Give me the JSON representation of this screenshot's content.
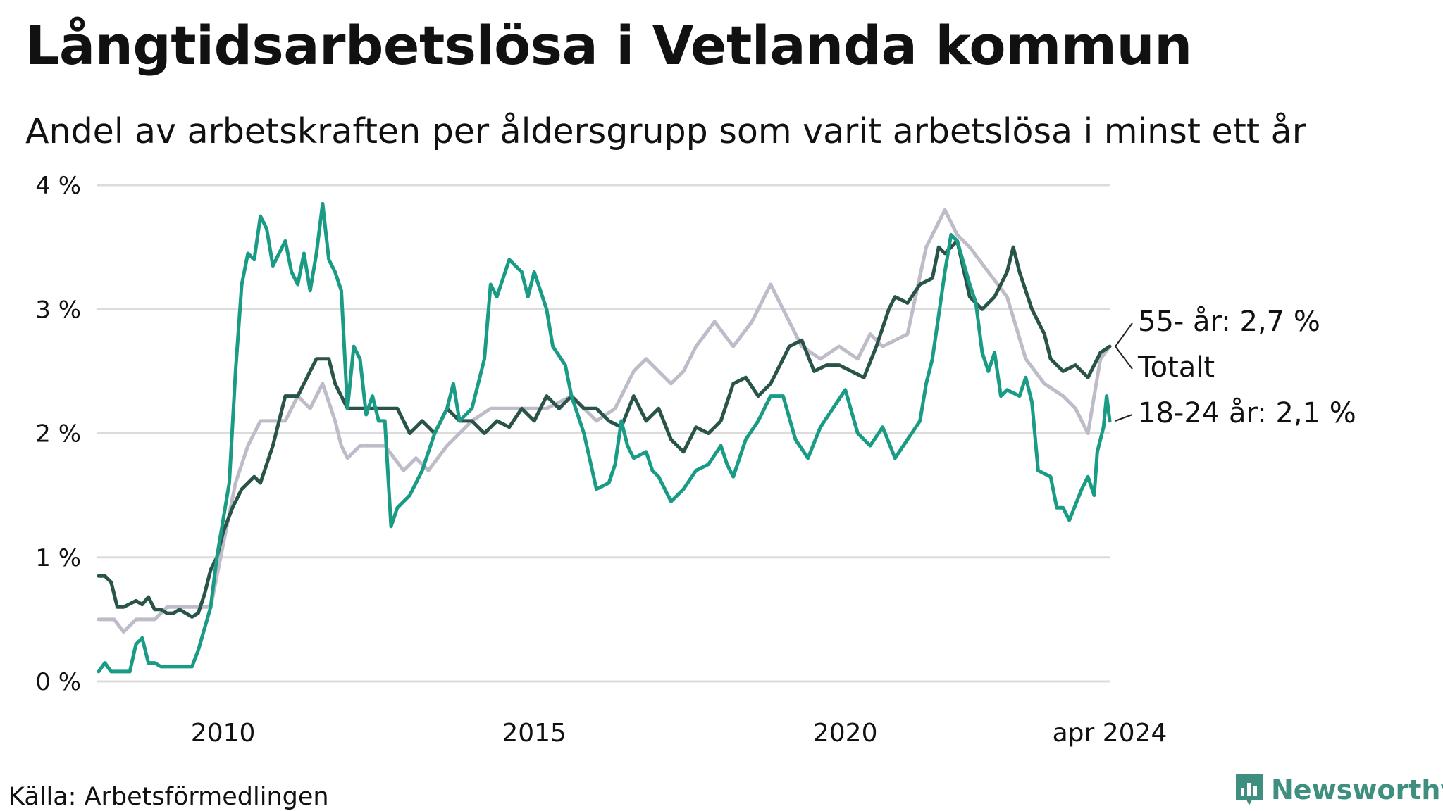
{
  "title": "Långtidsarbetslösa i Vetlanda kommun",
  "subtitle": "Andel av arbetskraften per åldersgrupp som varit arbetslösa i minst ett år",
  "source": "Källa: Arbetsförmedlingen",
  "brand": {
    "name": "Newsworthy",
    "icon": "newsworthy-logo-icon",
    "color": "#3e8f7f"
  },
  "chart_data": {
    "type": "line",
    "x_range": [
      2008.0,
      2024.25
    ],
    "x_ticks": [
      {
        "value": 2010,
        "label": "2010"
      },
      {
        "value": 2015,
        "label": "2015"
      },
      {
        "value": 2020,
        "label": "2020"
      },
      {
        "value": 2024.25,
        "label": "apr 2024"
      }
    ],
    "y_range": [
      0,
      4
    ],
    "y_ticks": [
      {
        "value": 0,
        "label": "0 %"
      },
      {
        "value": 1,
        "label": "1 %"
      },
      {
        "value": 2,
        "label": "2 %"
      },
      {
        "value": 3,
        "label": "3 %"
      },
      {
        "value": 4,
        "label": "4 %"
      }
    ],
    "grid": true,
    "series": [
      {
        "name": "55- år",
        "end_label": "55- år: 2,7 %",
        "color": "#bdbcc8",
        "points": [
          [
            2008.0,
            0.5
          ],
          [
            2008.25,
            0.5
          ],
          [
            2008.4,
            0.4
          ],
          [
            2008.6,
            0.5
          ],
          [
            2008.9,
            0.5
          ],
          [
            2009.1,
            0.6
          ],
          [
            2009.5,
            0.6
          ],
          [
            2009.8,
            0.6
          ],
          [
            2010.0,
            1.1
          ],
          [
            2010.2,
            1.6
          ],
          [
            2010.4,
            1.9
          ],
          [
            2010.6,
            2.1
          ],
          [
            2010.8,
            2.1
          ],
          [
            2011.0,
            2.1
          ],
          [
            2011.2,
            2.3
          ],
          [
            2011.4,
            2.2
          ],
          [
            2011.6,
            2.4
          ],
          [
            2011.8,
            2.1
          ],
          [
            2011.9,
            1.9
          ],
          [
            2012.0,
            1.8
          ],
          [
            2012.2,
            1.9
          ],
          [
            2012.6,
            1.9
          ],
          [
            2012.9,
            1.7
          ],
          [
            2013.1,
            1.8
          ],
          [
            2013.3,
            1.7
          ],
          [
            2013.6,
            1.9
          ],
          [
            2013.8,
            2.0
          ],
          [
            2014.0,
            2.1
          ],
          [
            2014.3,
            2.2
          ],
          [
            2014.8,
            2.2
          ],
          [
            2015.2,
            2.2
          ],
          [
            2015.6,
            2.3
          ],
          [
            2016.0,
            2.1
          ],
          [
            2016.3,
            2.2
          ],
          [
            2016.6,
            2.5
          ],
          [
            2016.8,
            2.6
          ],
          [
            2017.2,
            2.4
          ],
          [
            2017.4,
            2.5
          ],
          [
            2017.6,
            2.7
          ],
          [
            2017.9,
            2.9
          ],
          [
            2018.2,
            2.7
          ],
          [
            2018.5,
            2.9
          ],
          [
            2018.8,
            3.2
          ],
          [
            2019.0,
            3.0
          ],
          [
            2019.3,
            2.7
          ],
          [
            2019.6,
            2.6
          ],
          [
            2019.9,
            2.7
          ],
          [
            2020.2,
            2.6
          ],
          [
            2020.4,
            2.8
          ],
          [
            2020.6,
            2.7
          ],
          [
            2021.0,
            2.8
          ],
          [
            2021.3,
            3.5
          ],
          [
            2021.6,
            3.8
          ],
          [
            2021.8,
            3.6
          ],
          [
            2022.0,
            3.5
          ],
          [
            2022.3,
            3.3
          ],
          [
            2022.6,
            3.1
          ],
          [
            2022.9,
            2.6
          ],
          [
            2023.2,
            2.4
          ],
          [
            2023.5,
            2.3
          ],
          [
            2023.7,
            2.2
          ],
          [
            2023.9,
            2.0
          ],
          [
            2024.0,
            2.3
          ],
          [
            2024.1,
            2.6
          ],
          [
            2024.25,
            2.7
          ]
        ]
      },
      {
        "name": "Totalt",
        "end_label": "Totalt",
        "color": "#2a5449",
        "points": [
          [
            2008.0,
            0.85
          ],
          [
            2008.1,
            0.85
          ],
          [
            2008.2,
            0.8
          ],
          [
            2008.3,
            0.6
          ],
          [
            2008.4,
            0.6
          ],
          [
            2008.6,
            0.65
          ],
          [
            2008.7,
            0.62
          ],
          [
            2008.8,
            0.68
          ],
          [
            2008.9,
            0.58
          ],
          [
            2009.0,
            0.58
          ],
          [
            2009.1,
            0.55
          ],
          [
            2009.2,
            0.55
          ],
          [
            2009.3,
            0.58
          ],
          [
            2009.5,
            0.52
          ],
          [
            2009.6,
            0.55
          ],
          [
            2009.7,
            0.7
          ],
          [
            2009.8,
            0.9
          ],
          [
            2009.9,
            1.0
          ],
          [
            2010.0,
            1.2
          ],
          [
            2010.15,
            1.4
          ],
          [
            2010.3,
            1.55
          ],
          [
            2010.5,
            1.65
          ],
          [
            2010.6,
            1.6
          ],
          [
            2010.8,
            1.9
          ],
          [
            2011.0,
            2.3
          ],
          [
            2011.2,
            2.3
          ],
          [
            2011.4,
            2.5
          ],
          [
            2011.5,
            2.6
          ],
          [
            2011.7,
            2.6
          ],
          [
            2011.8,
            2.4
          ],
          [
            2012.0,
            2.2
          ],
          [
            2012.2,
            2.2
          ],
          [
            2012.4,
            2.2
          ],
          [
            2012.6,
            2.2
          ],
          [
            2012.8,
            2.2
          ],
          [
            2013.0,
            2.0
          ],
          [
            2013.2,
            2.1
          ],
          [
            2013.4,
            2.0
          ],
          [
            2013.6,
            2.2
          ],
          [
            2013.8,
            2.1
          ],
          [
            2014.0,
            2.1
          ],
          [
            2014.2,
            2.0
          ],
          [
            2014.4,
            2.1
          ],
          [
            2014.6,
            2.05
          ],
          [
            2014.8,
            2.2
          ],
          [
            2015.0,
            2.1
          ],
          [
            2015.2,
            2.3
          ],
          [
            2015.4,
            2.2
          ],
          [
            2015.6,
            2.3
          ],
          [
            2015.8,
            2.2
          ],
          [
            2016.0,
            2.2
          ],
          [
            2016.2,
            2.1
          ],
          [
            2016.4,
            2.05
          ],
          [
            2016.6,
            2.3
          ],
          [
            2016.8,
            2.1
          ],
          [
            2017.0,
            2.2
          ],
          [
            2017.2,
            1.95
          ],
          [
            2017.4,
            1.85
          ],
          [
            2017.6,
            2.05
          ],
          [
            2017.8,
            2.0
          ],
          [
            2018.0,
            2.1
          ],
          [
            2018.2,
            2.4
          ],
          [
            2018.4,
            2.45
          ],
          [
            2018.6,
            2.3
          ],
          [
            2018.8,
            2.4
          ],
          [
            2019.0,
            2.6
          ],
          [
            2019.1,
            2.7
          ],
          [
            2019.3,
            2.75
          ],
          [
            2019.5,
            2.5
          ],
          [
            2019.7,
            2.55
          ],
          [
            2019.9,
            2.55
          ],
          [
            2020.1,
            2.5
          ],
          [
            2020.3,
            2.45
          ],
          [
            2020.5,
            2.7
          ],
          [
            2020.7,
            3.0
          ],
          [
            2020.8,
            3.1
          ],
          [
            2021.0,
            3.05
          ],
          [
            2021.2,
            3.2
          ],
          [
            2021.4,
            3.25
          ],
          [
            2021.5,
            3.5
          ],
          [
            2021.6,
            3.45
          ],
          [
            2021.8,
            3.55
          ],
          [
            2022.0,
            3.1
          ],
          [
            2022.2,
            3.0
          ],
          [
            2022.4,
            3.1
          ],
          [
            2022.6,
            3.3
          ],
          [
            2022.7,
            3.5
          ],
          [
            2022.8,
            3.3
          ],
          [
            2023.0,
            3.0
          ],
          [
            2023.2,
            2.8
          ],
          [
            2023.3,
            2.6
          ],
          [
            2023.5,
            2.5
          ],
          [
            2023.7,
            2.55
          ],
          [
            2023.9,
            2.45
          ],
          [
            2024.0,
            2.55
          ],
          [
            2024.1,
            2.65
          ],
          [
            2024.25,
            2.7
          ]
        ]
      },
      {
        "name": "18-24 år",
        "end_label": "18-24 år: 2,1 %",
        "color": "#1a9b85",
        "points": [
          [
            2008.0,
            0.08
          ],
          [
            2008.1,
            0.15
          ],
          [
            2008.2,
            0.08
          ],
          [
            2008.4,
            0.08
          ],
          [
            2008.5,
            0.08
          ],
          [
            2008.6,
            0.3
          ],
          [
            2008.7,
            0.35
          ],
          [
            2008.8,
            0.15
          ],
          [
            2008.9,
            0.15
          ],
          [
            2009.0,
            0.12
          ],
          [
            2009.3,
            0.12
          ],
          [
            2009.5,
            0.12
          ],
          [
            2009.6,
            0.25
          ],
          [
            2009.8,
            0.6
          ],
          [
            2009.9,
            1.0
          ],
          [
            2010.0,
            1.3
          ],
          [
            2010.1,
            1.6
          ],
          [
            2010.2,
            2.5
          ],
          [
            2010.3,
            3.2
          ],
          [
            2010.4,
            3.45
          ],
          [
            2010.5,
            3.4
          ],
          [
            2010.6,
            3.75
          ],
          [
            2010.7,
            3.65
          ],
          [
            2010.8,
            3.35
          ],
          [
            2010.9,
            3.45
          ],
          [
            2011.0,
            3.55
          ],
          [
            2011.1,
            3.3
          ],
          [
            2011.2,
            3.2
          ],
          [
            2011.3,
            3.45
          ],
          [
            2011.4,
            3.15
          ],
          [
            2011.5,
            3.45
          ],
          [
            2011.6,
            3.85
          ],
          [
            2011.7,
            3.4
          ],
          [
            2011.8,
            3.3
          ],
          [
            2011.9,
            3.15
          ],
          [
            2012.0,
            2.2
          ],
          [
            2012.1,
            2.7
          ],
          [
            2012.2,
            2.6
          ],
          [
            2012.3,
            2.15
          ],
          [
            2012.4,
            2.3
          ],
          [
            2012.5,
            2.1
          ],
          [
            2012.6,
            2.1
          ],
          [
            2012.7,
            1.25
          ],
          [
            2012.8,
            1.4
          ],
          [
            2013.0,
            1.5
          ],
          [
            2013.2,
            1.7
          ],
          [
            2013.4,
            2.0
          ],
          [
            2013.6,
            2.2
          ],
          [
            2013.7,
            2.4
          ],
          [
            2013.8,
            2.1
          ],
          [
            2014.0,
            2.2
          ],
          [
            2014.2,
            2.6
          ],
          [
            2014.3,
            3.2
          ],
          [
            2014.4,
            3.1
          ],
          [
            2014.6,
            3.4
          ],
          [
            2014.8,
            3.3
          ],
          [
            2014.9,
            3.1
          ],
          [
            2015.0,
            3.3
          ],
          [
            2015.2,
            3.0
          ],
          [
            2015.3,
            2.7
          ],
          [
            2015.5,
            2.55
          ],
          [
            2015.6,
            2.3
          ],
          [
            2015.8,
            2.0
          ],
          [
            2016.0,
            1.55
          ],
          [
            2016.2,
            1.6
          ],
          [
            2016.3,
            1.75
          ],
          [
            2016.4,
            2.1
          ],
          [
            2016.5,
            1.9
          ],
          [
            2016.6,
            1.8
          ],
          [
            2016.8,
            1.85
          ],
          [
            2016.9,
            1.7
          ],
          [
            2017.0,
            1.65
          ],
          [
            2017.2,
            1.45
          ],
          [
            2017.4,
            1.55
          ],
          [
            2017.6,
            1.7
          ],
          [
            2017.8,
            1.75
          ],
          [
            2018.0,
            1.9
          ],
          [
            2018.1,
            1.75
          ],
          [
            2018.2,
            1.65
          ],
          [
            2018.4,
            1.95
          ],
          [
            2018.6,
            2.1
          ],
          [
            2018.8,
            2.3
          ],
          [
            2019.0,
            2.3
          ],
          [
            2019.2,
            1.95
          ],
          [
            2019.4,
            1.8
          ],
          [
            2019.6,
            2.05
          ],
          [
            2019.8,
            2.2
          ],
          [
            2020.0,
            2.35
          ],
          [
            2020.2,
            2.0
          ],
          [
            2020.4,
            1.9
          ],
          [
            2020.6,
            2.05
          ],
          [
            2020.8,
            1.8
          ],
          [
            2021.0,
            1.95
          ],
          [
            2021.2,
            2.1
          ],
          [
            2021.3,
            2.4
          ],
          [
            2021.4,
            2.6
          ],
          [
            2021.5,
            2.95
          ],
          [
            2021.6,
            3.3
          ],
          [
            2021.7,
            3.6
          ],
          [
            2021.8,
            3.55
          ],
          [
            2022.0,
            3.2
          ],
          [
            2022.1,
            3.05
          ],
          [
            2022.2,
            2.65
          ],
          [
            2022.3,
            2.5
          ],
          [
            2022.4,
            2.65
          ],
          [
            2022.5,
            2.3
          ],
          [
            2022.6,
            2.35
          ],
          [
            2022.8,
            2.3
          ],
          [
            2022.9,
            2.45
          ],
          [
            2023.0,
            2.25
          ],
          [
            2023.1,
            1.7
          ],
          [
            2023.3,
            1.65
          ],
          [
            2023.4,
            1.4
          ],
          [
            2023.5,
            1.4
          ],
          [
            2023.6,
            1.3
          ],
          [
            2023.8,
            1.55
          ],
          [
            2023.9,
            1.65
          ],
          [
            2024.0,
            1.5
          ],
          [
            2024.05,
            1.85
          ],
          [
            2024.1,
            1.95
          ],
          [
            2024.15,
            2.05
          ],
          [
            2024.2,
            2.3
          ],
          [
            2024.25,
            2.1
          ]
        ]
      }
    ]
  }
}
